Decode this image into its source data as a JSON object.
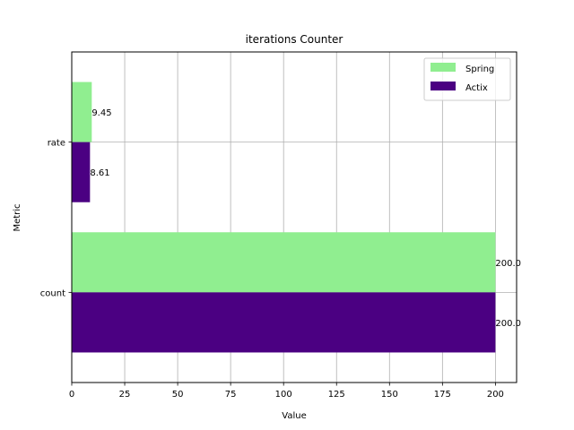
{
  "chart_data": {
    "type": "bar",
    "orientation": "horizontal",
    "title": "iterations Counter",
    "xlabel": "Value",
    "ylabel": "Metric",
    "categories": [
      "count",
      "rate"
    ],
    "series": [
      {
        "name": "Spring",
        "values": [
          200.0,
          9.45
        ],
        "labels": [
          "200.0",
          "9.45"
        ],
        "color": "#90ee90"
      },
      {
        "name": "Actix",
        "values": [
          200.0,
          8.61
        ],
        "labels": [
          "200.0",
          "8.61"
        ],
        "color": "#4b0082"
      }
    ],
    "xlim": [
      0,
      210
    ],
    "xticks": [
      0,
      25,
      50,
      75,
      100,
      125,
      150,
      175,
      200
    ],
    "grid": true,
    "legend_position": "top-right"
  }
}
